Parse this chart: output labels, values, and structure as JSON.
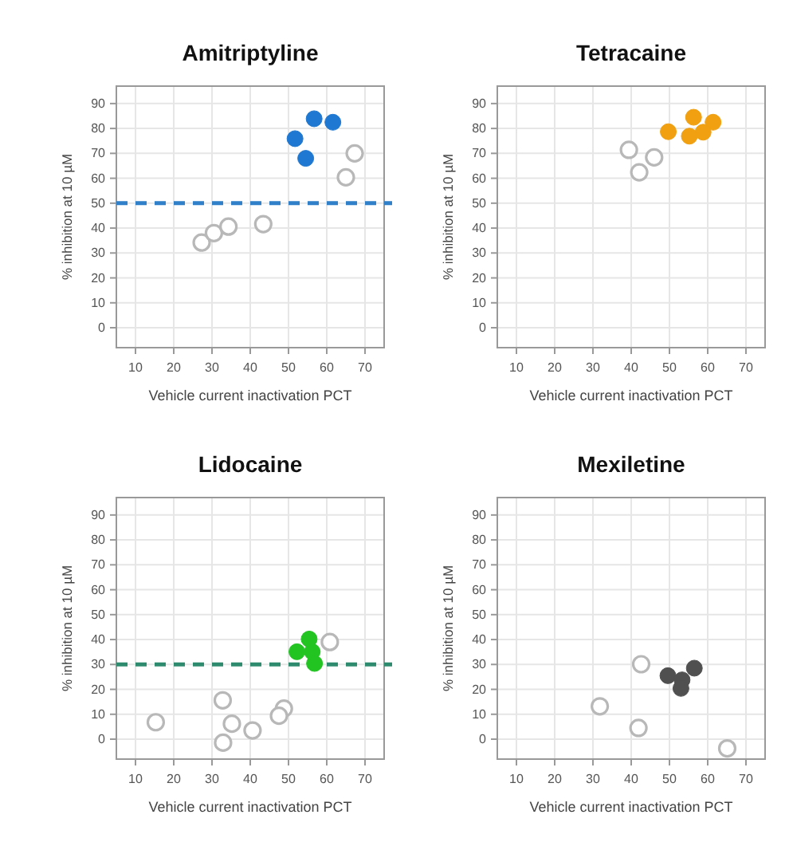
{
  "chart_data": [
    {
      "type": "scatter",
      "title": "Amitriptyline",
      "xlabel": "Vehicle current inactivation PCT",
      "ylabel": "% inhibition at 10 µM",
      "xlim": [
        5,
        75
      ],
      "ylim": [
        -8,
        97
      ],
      "xticks": [
        10,
        20,
        30,
        40,
        50,
        60,
        70
      ],
      "yticks": [
        0,
        10,
        20,
        30,
        40,
        50,
        60,
        70,
        80,
        90
      ],
      "grid": true,
      "marker": "circle",
      "ref_lines": [
        {
          "axis": "y",
          "value": 50,
          "color": "#2f80c8",
          "line_style": "dashed"
        }
      ],
      "series": [
        {
          "color": "#1f78d1",
          "x": [
            51.7,
            56.7,
            61.6,
            54.5
          ],
          "values": [
            75.9,
            83.9,
            82.5,
            68
          ]
        },
        {
          "color": "#b8b8b8",
          "x": [
            67.3,
            65,
            27.3,
            30.5,
            34.3,
            43.4
          ],
          "values": [
            70,
            60.4,
            34.2,
            38,
            40.6,
            41.6
          ]
        }
      ]
    },
    {
      "type": "scatter",
      "title": "Tetracaine",
      "xlabel": "Vehicle current inactivation PCT",
      "ylabel": "% inhibition at 10 µM",
      "xlim": [
        5,
        75
      ],
      "ylim": [
        -8,
        97
      ],
      "xticks": [
        10,
        20,
        30,
        40,
        50,
        60,
        70
      ],
      "yticks": [
        0,
        10,
        20,
        30,
        40,
        50,
        60,
        70,
        80,
        90
      ],
      "grid": true,
      "marker": "circle",
      "series": [
        {
          "color": "#f0a010",
          "x": [
            49.7,
            56.3,
            61.4,
            58.8,
            55.2
          ],
          "values": [
            78.7,
            84.5,
            82.5,
            78.5,
            76.9
          ]
        },
        {
          "color": "#b8b8b8",
          "x": [
            39.4,
            46,
            42.1
          ],
          "values": [
            71.4,
            68.4,
            62.4
          ]
        }
      ]
    },
    {
      "type": "scatter",
      "title": "Lidocaine",
      "xlabel": "Vehicle current inactivation PCT",
      "ylabel": "% inhibition at 10 µM",
      "xlim": [
        5,
        75
      ],
      "ylim": [
        -8,
        97
      ],
      "xticks": [
        10,
        20,
        30,
        40,
        50,
        60,
        70
      ],
      "yticks": [
        0,
        10,
        20,
        30,
        40,
        50,
        60,
        70,
        80,
        90
      ],
      "grid": true,
      "marker": "circle",
      "ref_lines": [
        {
          "axis": "y",
          "value": 30,
          "color": "#2e8b6e",
          "line_style": "dashed"
        }
      ],
      "series": [
        {
          "color": "#22c422",
          "x": [
            52.2,
            55.4,
            56.2,
            56.8
          ],
          "values": [
            35.1,
            40.2,
            35.1,
            30.4
          ]
        },
        {
          "color": "#b8b8b8",
          "x": [
            60.8,
            48.8,
            47.5,
            15.3,
            32.8,
            35.2,
            40.6,
            32.9
          ],
          "values": [
            39,
            12.3,
            9.4,
            6.8,
            15.6,
            6.2,
            3.5,
            -1.4
          ]
        }
      ]
    },
    {
      "type": "scatter",
      "title": "Mexiletine",
      "xlabel": "Vehicle current inactivation PCT",
      "ylabel": "% inhibition at 10 µM",
      "xlim": [
        5,
        75
      ],
      "ylim": [
        -8,
        97
      ],
      "xticks": [
        10,
        20,
        30,
        40,
        50,
        60,
        70
      ],
      "yticks": [
        0,
        10,
        20,
        30,
        40,
        50,
        60,
        70,
        80,
        90
      ],
      "grid": true,
      "marker": "circle",
      "series": [
        {
          "color": "#505050",
          "x": [
            49.6,
            53.3,
            53,
            56.5
          ],
          "values": [
            25.5,
            23.8,
            20.4,
            28.5
          ]
        },
        {
          "color": "#b8b8b8",
          "x": [
            42.6,
            31.8,
            41.9,
            65.1
          ],
          "values": [
            30.1,
            13.2,
            4.5,
            -3.7
          ]
        }
      ]
    }
  ]
}
